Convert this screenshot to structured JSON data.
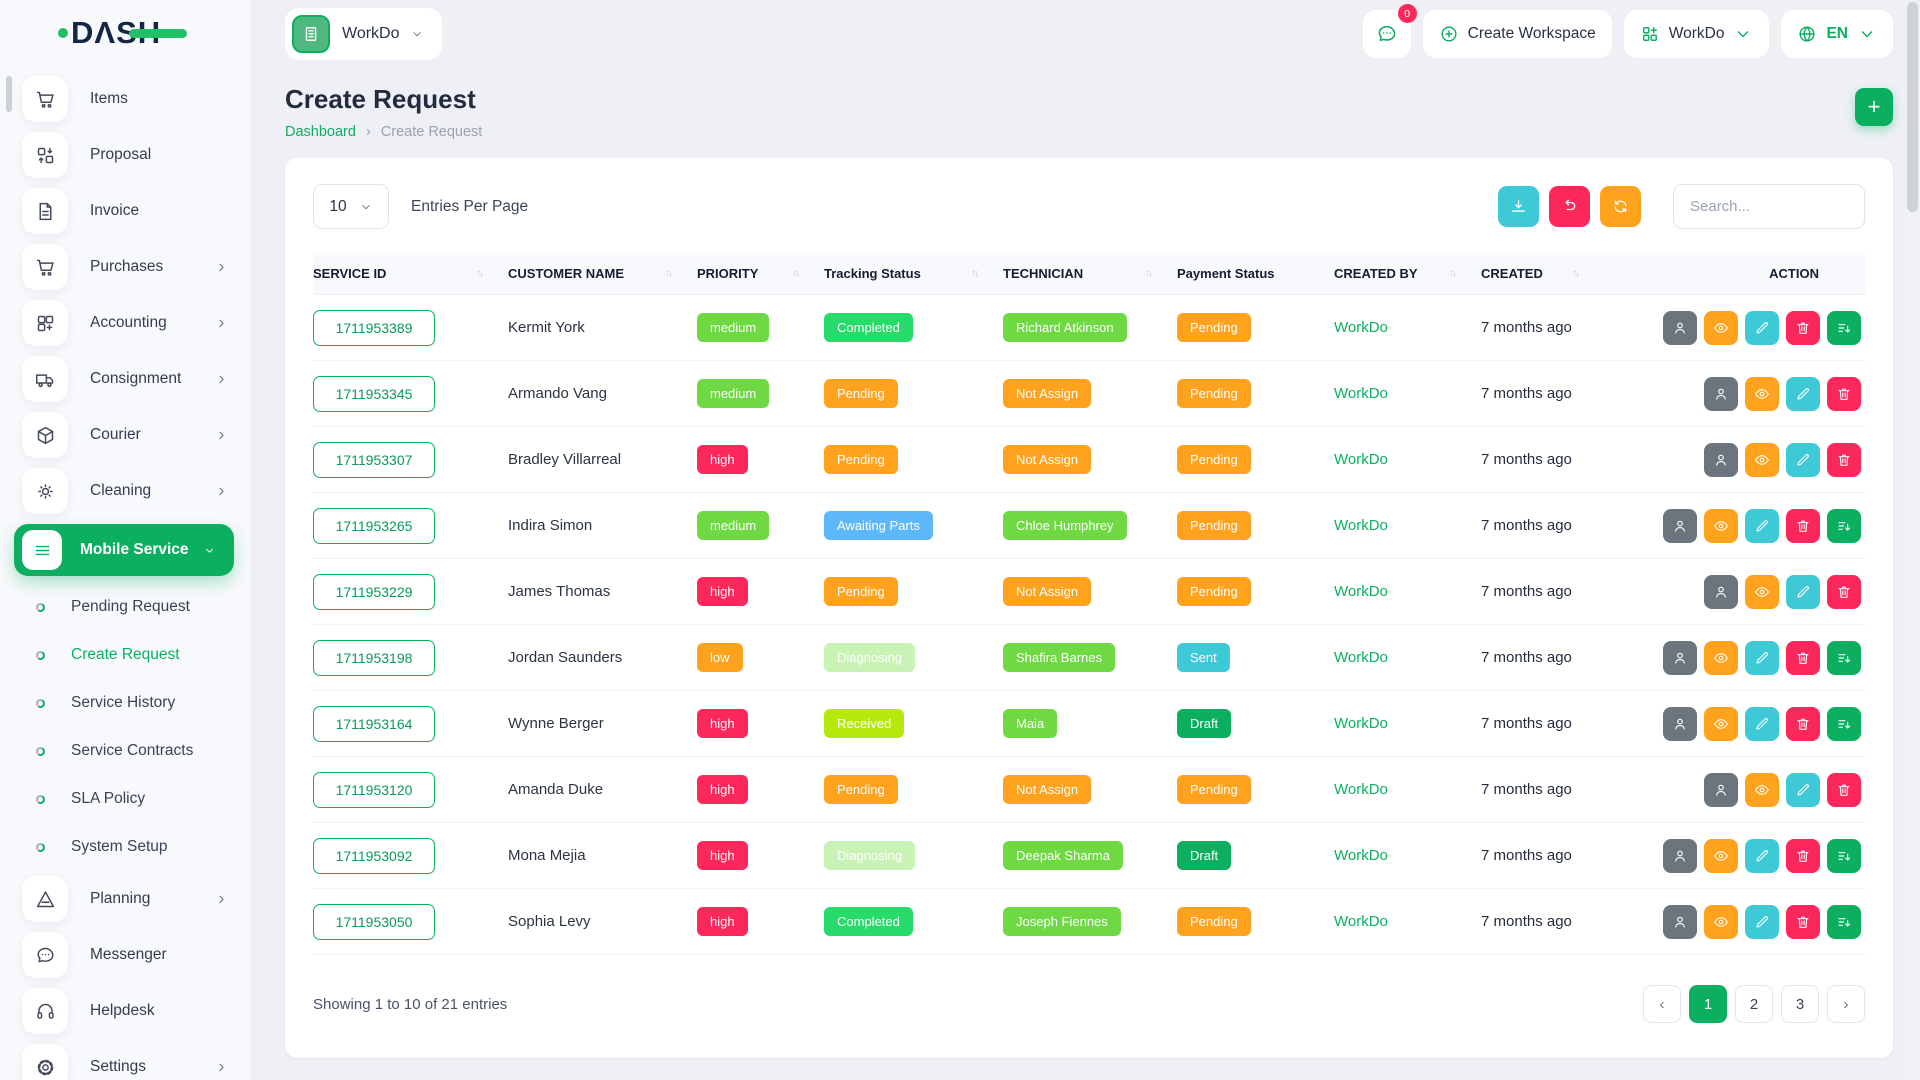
{
  "brand": {
    "logo_text": "DΛS",
    "logo_last": "H"
  },
  "header": {
    "workspace_pill": {
      "label": "WorkDo"
    },
    "chat_badge": "0",
    "create_workspace_label": "Create Workspace",
    "workspace_switch_label": "WorkDo",
    "language": "EN"
  },
  "sidebar": {
    "main": [
      {
        "label": "Items",
        "icon": "cart",
        "chevron": false
      },
      {
        "label": "Proposal",
        "icon": "proposal",
        "chevron": false
      },
      {
        "label": "Invoice",
        "icon": "invoice",
        "chevron": false
      },
      {
        "label": "Purchases",
        "icon": "cart",
        "chevron": true
      },
      {
        "label": "Accounting",
        "icon": "accounting",
        "chevron": true
      },
      {
        "label": "Consignment",
        "icon": "truck",
        "chevron": true
      },
      {
        "label": "Courier",
        "icon": "package",
        "chevron": true
      },
      {
        "label": "Cleaning",
        "icon": "cleaning",
        "chevron": true
      },
      {
        "label": "Mobile Service",
        "icon": "menu",
        "chevron": true,
        "active": true
      }
    ],
    "sub": [
      {
        "label": "Pending Request"
      },
      {
        "label": "Create Request",
        "active": true
      },
      {
        "label": "Service History"
      },
      {
        "label": "Service Contracts"
      },
      {
        "label": "SLA Policy"
      },
      {
        "label": "System Setup"
      }
    ],
    "bottom": [
      {
        "label": "Planning",
        "icon": "planning",
        "chevron": true
      },
      {
        "label": "Messenger",
        "icon": "messenger",
        "chevron": false
      },
      {
        "label": "Helpdesk",
        "icon": "helpdesk",
        "chevron": false
      },
      {
        "label": "Settings",
        "icon": "settings",
        "chevron": true
      }
    ]
  },
  "page": {
    "title": "Create Request",
    "breadcrumb": {
      "home": "Dashboard",
      "current": "Create Request"
    },
    "add_button": "+"
  },
  "toolbar": {
    "entries_value": "10",
    "entries_label": "Entries Per Page",
    "search_placeholder": "Search..."
  },
  "colors": {
    "primary": "#0CAF60",
    "action_buttons": {
      "user": "#6C757D",
      "eye": "#FFA21D",
      "pencil": "#3EC9D6",
      "trash": "#FC275A",
      "convert": "#0CAF60"
    },
    "toolbar_buttons": {
      "download": "#3EC9D6",
      "undo": "#FC275A",
      "refresh": "#FFA21D"
    }
  },
  "table": {
    "columns": [
      {
        "label": "SERVICE ID",
        "sortable": true
      },
      {
        "label": "CUSTOMER NAME",
        "sortable": true
      },
      {
        "label": "PRIORITY",
        "sortable": true
      },
      {
        "label": "Tracking Status",
        "sortable": true
      },
      {
        "label": "TECHNICIAN",
        "sortable": true
      },
      {
        "label": "Payment Status",
        "sortable": false
      },
      {
        "label": "CREATED BY",
        "sortable": true
      },
      {
        "label": "CREATED",
        "sortable": true
      },
      {
        "label": "ACTION",
        "sortable": false
      }
    ],
    "rows": [
      {
        "service_id": "1711953389",
        "customer": "Kermit York",
        "priority": {
          "label": "medium",
          "bg": "#6FD943"
        },
        "tracking": {
          "label": "Completed",
          "bg": "#26DB6A"
        },
        "technician": {
          "label": "Richard Atkinson",
          "bg": "#6FD943"
        },
        "payment": {
          "label": "Pending",
          "bg": "#FFA21D"
        },
        "created_by": "WorkDo",
        "created": "7 months ago",
        "actions": [
          "user",
          "eye",
          "pencil",
          "trash",
          "convert"
        ]
      },
      {
        "service_id": "1711953345",
        "customer": "Armando Vang",
        "priority": {
          "label": "medium",
          "bg": "#6FD943"
        },
        "tracking": {
          "label": "Pending",
          "bg": "#FFA21D"
        },
        "technician": {
          "label": "Not Assign",
          "bg": "#FFA21D"
        },
        "payment": {
          "label": "Pending",
          "bg": "#FFA21D"
        },
        "created_by": "WorkDo",
        "created": "7 months ago",
        "actions": [
          "user",
          "eye",
          "pencil",
          "trash"
        ]
      },
      {
        "service_id": "1711953307",
        "customer": "Bradley Villarreal",
        "priority": {
          "label": "high",
          "bg": "#FC275A"
        },
        "tracking": {
          "label": "Pending",
          "bg": "#FFA21D"
        },
        "technician": {
          "label": "Not Assign",
          "bg": "#FFA21D"
        },
        "payment": {
          "label": "Pending",
          "bg": "#FFA21D"
        },
        "created_by": "WorkDo",
        "created": "7 months ago",
        "actions": [
          "user",
          "eye",
          "pencil",
          "trash"
        ]
      },
      {
        "service_id": "1711953265",
        "customer": "Indira Simon",
        "priority": {
          "label": "medium",
          "bg": "#6FD943"
        },
        "tracking": {
          "label": "Awaiting Parts",
          "bg": "#5CB8F8"
        },
        "technician": {
          "label": "Chloe Humphrey",
          "bg": "#6FD943"
        },
        "payment": {
          "label": "Pending",
          "bg": "#FFA21D"
        },
        "created_by": "WorkDo",
        "created": "7 months ago",
        "actions": [
          "user",
          "eye",
          "pencil",
          "trash",
          "convert"
        ]
      },
      {
        "service_id": "1711953229",
        "customer": "James Thomas",
        "priority": {
          "label": "high",
          "bg": "#FC275A"
        },
        "tracking": {
          "label": "Pending",
          "bg": "#FFA21D"
        },
        "technician": {
          "label": "Not Assign",
          "bg": "#FFA21D"
        },
        "payment": {
          "label": "Pending",
          "bg": "#FFA21D"
        },
        "created_by": "WorkDo",
        "created": "7 months ago",
        "actions": [
          "user",
          "eye",
          "pencil",
          "trash"
        ]
      },
      {
        "service_id": "1711953198",
        "customer": "Jordan Saunders",
        "priority": {
          "label": "low",
          "bg": "#FFA21D"
        },
        "tracking": {
          "label": "Diagnosing",
          "bg": "#C9F3B5"
        },
        "technician": {
          "label": "Shafira Barnes",
          "bg": "#6FD943"
        },
        "payment": {
          "label": "Sent",
          "bg": "#3EC9D6"
        },
        "created_by": "WorkDo",
        "created": "7 months ago",
        "actions": [
          "user",
          "eye",
          "pencil",
          "trash",
          "convert"
        ]
      },
      {
        "service_id": "1711953164",
        "customer": "Wynne Berger",
        "priority": {
          "label": "high",
          "bg": "#FC275A"
        },
        "tracking": {
          "label": "Received",
          "bg": "#B5E90C"
        },
        "technician": {
          "label": "Maia",
          "bg": "#6FD943"
        },
        "payment": {
          "label": "Draft",
          "bg": "#0CAF60"
        },
        "created_by": "WorkDo",
        "created": "7 months ago",
        "actions": [
          "user",
          "eye",
          "pencil",
          "trash",
          "convert"
        ]
      },
      {
        "service_id": "1711953120",
        "customer": "Amanda Duke",
        "priority": {
          "label": "high",
          "bg": "#FC275A"
        },
        "tracking": {
          "label": "Pending",
          "bg": "#FFA21D"
        },
        "technician": {
          "label": "Not Assign",
          "bg": "#FFA21D"
        },
        "payment": {
          "label": "Pending",
          "bg": "#FFA21D"
        },
        "created_by": "WorkDo",
        "created": "7 months ago",
        "actions": [
          "user",
          "eye",
          "pencil",
          "trash"
        ]
      },
      {
        "service_id": "1711953092",
        "customer": "Mona Mejia",
        "priority": {
          "label": "high",
          "bg": "#FC275A"
        },
        "tracking": {
          "label": "Diagnosing",
          "bg": "#C9F3B5"
        },
        "technician": {
          "label": "Deepak Sharma",
          "bg": "#6FD943"
        },
        "payment": {
          "label": "Draft",
          "bg": "#0CAF60"
        },
        "created_by": "WorkDo",
        "created": "7 months ago",
        "actions": [
          "user",
          "eye",
          "pencil",
          "trash",
          "convert"
        ]
      },
      {
        "service_id": "1711953050",
        "customer": "Sophia Levy",
        "priority": {
          "label": "high",
          "bg": "#FC275A"
        },
        "tracking": {
          "label": "Completed",
          "bg": "#26DB6A"
        },
        "technician": {
          "label": "Joseph Fiennes",
          "bg": "#6FD943"
        },
        "payment": {
          "label": "Pending",
          "bg": "#FFA21D"
        },
        "created_by": "WorkDo",
        "created": "7 months ago",
        "actions": [
          "user",
          "eye",
          "pencil",
          "trash",
          "convert"
        ]
      }
    ]
  },
  "footer": {
    "showing_text": "Showing 1 to 10 of 21 entries",
    "pages": [
      "1",
      "2",
      "3"
    ],
    "active_page": "1",
    "prev_label": "‹",
    "next_label": "›"
  }
}
